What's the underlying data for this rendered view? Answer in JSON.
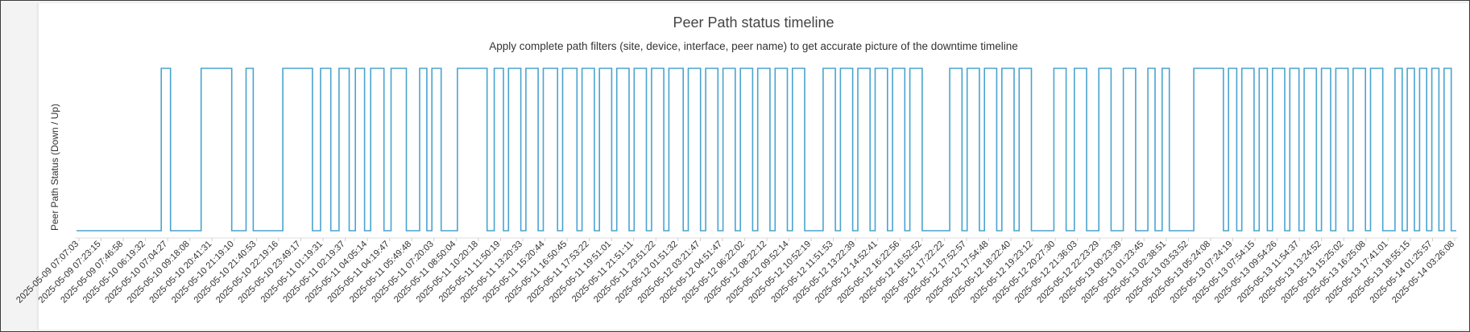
{
  "chart_data": {
    "type": "line",
    "step": true,
    "title": "Peer Path status timeline",
    "subtitle": "Apply complete path filters (site, device, interface, peer name) to get accurate picture of the downtime timeline",
    "ylabel": "Peer Path Status (Down / Up)",
    "xlabel": "",
    "y_levels": [
      "Down",
      "Up"
    ],
    "line_color": "#4aa3cf",
    "grid": false,
    "x_tick_labels": [
      "2025-05-09 07:07:03",
      "2025-05-09 07:23:15",
      "2025-05-09 07:46:58",
      "2025-05-10 06:19:32",
      "2025-05-10 07:04:27",
      "2025-05-10 09:18:08",
      "2025-05-10 20:41:31",
      "2025-05-10 21:19:10",
      "2025-05-10 21:40:53",
      "2025-05-10 22:19:16",
      "2025-05-10 23:49:17",
      "2025-05-11 01:19:31",
      "2025-05-11 02:19:37",
      "2025-05-11 04:05:14",
      "2025-05-11 04:19:47",
      "2025-05-11 05:49:48",
      "2025-05-11 07:20:03",
      "2025-05-11 08:50:04",
      "2025-05-11 10:20:18",
      "2025-05-11 11:50:19",
      "2025-05-11 13:20:33",
      "2025-05-11 15:20:44",
      "2025-05-11 16:50:45",
      "2025-05-11 17:53:22",
      "2025-05-11 19:51:01",
      "2025-05-11 21:51:11",
      "2025-05-11 23:51:22",
      "2025-05-12 01:51:32",
      "2025-05-12 03:21:47",
      "2025-05-12 04:51:47",
      "2025-05-12 06:22:02",
      "2025-05-12 08:22:12",
      "2025-05-12 09:52:14",
      "2025-05-12 10:52:19",
      "2025-05-12 11:51:53",
      "2025-05-12 13:22:39",
      "2025-05-12 14:52:41",
      "2025-05-12 16:22:56",
      "2025-05-12 16:52:52",
      "2025-05-12 17:22:22",
      "2025-05-12 17:52:57",
      "2025-05-12 17:54:48",
      "2025-05-12 18:22:40",
      "2025-05-12 19:23:12",
      "2025-05-12 20:27:30",
      "2025-05-12 21:36:03",
      "2025-05-12 22:23:29",
      "2025-05-13 00:23:39",
      "2025-05-13 01:23:45",
      "2025-05-13 02:38:51",
      "2025-05-13 03:53:52",
      "2025-05-13 05:24:08",
      "2025-05-13 07:24:19",
      "2025-05-13 07:54:15",
      "2025-05-13 09:54:26",
      "2025-05-13 11:54:37",
      "2025-05-13 13:24:52",
      "2025-05-13 15:25:02",
      "2025-05-13 16:25:08",
      "2025-05-13 17:41:01",
      "2025-05-13 18:55:15",
      "2025-05-14 01:25:57",
      "2025-05-14 03:26:08"
    ],
    "segments": [
      {
        "state": "Down",
        "ratio": 8.3
      },
      {
        "state": "Up",
        "ratio": 0.9
      },
      {
        "state": "Down",
        "ratio": 3.0
      },
      {
        "state": "Up",
        "ratio": 3.0
      },
      {
        "state": "Down",
        "ratio": 1.4
      },
      {
        "state": "Up",
        "ratio": 0.7
      },
      {
        "state": "Down",
        "ratio": 2.9
      },
      {
        "state": "Up",
        "ratio": 2.9
      },
      {
        "state": "Down",
        "ratio": 0.8
      },
      {
        "state": "Up",
        "ratio": 1.0
      },
      {
        "state": "Down",
        "ratio": 0.8
      },
      {
        "state": "Up",
        "ratio": 1.0
      },
      {
        "state": "Down",
        "ratio": 0.6
      },
      {
        "state": "Up",
        "ratio": 0.9
      },
      {
        "state": "Down",
        "ratio": 0.6
      },
      {
        "state": "Up",
        "ratio": 1.3
      },
      {
        "state": "Down",
        "ratio": 0.7
      },
      {
        "state": "Up",
        "ratio": 1.5
      },
      {
        "state": "Down",
        "ratio": 1.3
      },
      {
        "state": "Up",
        "ratio": 0.7
      },
      {
        "state": "Down",
        "ratio": 0.5
      },
      {
        "state": "Up",
        "ratio": 0.9
      },
      {
        "state": "Down",
        "ratio": 1.6
      },
      {
        "state": "Up",
        "ratio": 2.9
      },
      {
        "state": "Down",
        "ratio": 0.7
      },
      {
        "state": "Up",
        "ratio": 0.9
      },
      {
        "state": "Down",
        "ratio": 0.5
      },
      {
        "state": "Up",
        "ratio": 1.2
      },
      {
        "state": "Down",
        "ratio": 0.5
      },
      {
        "state": "Up",
        "ratio": 1.2
      },
      {
        "state": "Down",
        "ratio": 0.5
      },
      {
        "state": "Up",
        "ratio": 1.4
      },
      {
        "state": "Down",
        "ratio": 0.5
      },
      {
        "state": "Up",
        "ratio": 1.4
      },
      {
        "state": "Down",
        "ratio": 0.5
      },
      {
        "state": "Up",
        "ratio": 1.2
      },
      {
        "state": "Down",
        "ratio": 0.5
      },
      {
        "state": "Up",
        "ratio": 1.2
      },
      {
        "state": "Down",
        "ratio": 0.5
      },
      {
        "state": "Up",
        "ratio": 1.2
      },
      {
        "state": "Down",
        "ratio": 0.5
      },
      {
        "state": "Up",
        "ratio": 1.2
      },
      {
        "state": "Down",
        "ratio": 0.5
      },
      {
        "state": "Up",
        "ratio": 1.2
      },
      {
        "state": "Down",
        "ratio": 0.5
      },
      {
        "state": "Up",
        "ratio": 1.4
      },
      {
        "state": "Down",
        "ratio": 0.5
      },
      {
        "state": "Up",
        "ratio": 1.2
      },
      {
        "state": "Down",
        "ratio": 0.5
      },
      {
        "state": "Up",
        "ratio": 1.2
      },
      {
        "state": "Down",
        "ratio": 0.5
      },
      {
        "state": "Up",
        "ratio": 1.2
      },
      {
        "state": "Down",
        "ratio": 0.5
      },
      {
        "state": "Up",
        "ratio": 1.2
      },
      {
        "state": "Down",
        "ratio": 0.5
      },
      {
        "state": "Up",
        "ratio": 1.2
      },
      {
        "state": "Down",
        "ratio": 0.5
      },
      {
        "state": "Up",
        "ratio": 1.2
      },
      {
        "state": "Down",
        "ratio": 0.5
      },
      {
        "state": "Up",
        "ratio": 1.2
      },
      {
        "state": "Down",
        "ratio": 1.8
      },
      {
        "state": "Up",
        "ratio": 1.2
      },
      {
        "state": "Down",
        "ratio": 0.5
      },
      {
        "state": "Up",
        "ratio": 1.2
      },
      {
        "state": "Down",
        "ratio": 0.5
      },
      {
        "state": "Up",
        "ratio": 1.2
      },
      {
        "state": "Down",
        "ratio": 0.5
      },
      {
        "state": "Up",
        "ratio": 1.2
      },
      {
        "state": "Down",
        "ratio": 0.5
      },
      {
        "state": "Up",
        "ratio": 1.2
      },
      {
        "state": "Down",
        "ratio": 0.5
      },
      {
        "state": "Up",
        "ratio": 1.2
      },
      {
        "state": "Down",
        "ratio": 2.7
      },
      {
        "state": "Up",
        "ratio": 1.2
      },
      {
        "state": "Down",
        "ratio": 0.5
      },
      {
        "state": "Up",
        "ratio": 1.2
      },
      {
        "state": "Down",
        "ratio": 0.5
      },
      {
        "state": "Up",
        "ratio": 1.2
      },
      {
        "state": "Down",
        "ratio": 0.5
      },
      {
        "state": "Up",
        "ratio": 1.2
      },
      {
        "state": "Down",
        "ratio": 0.5
      },
      {
        "state": "Up",
        "ratio": 1.2
      },
      {
        "state": "Down",
        "ratio": 2.2
      },
      {
        "state": "Up",
        "ratio": 1.2
      },
      {
        "state": "Down",
        "ratio": 0.8
      },
      {
        "state": "Up",
        "ratio": 1.2
      },
      {
        "state": "Down",
        "ratio": 1.2
      },
      {
        "state": "Up",
        "ratio": 1.2
      },
      {
        "state": "Down",
        "ratio": 1.2
      },
      {
        "state": "Up",
        "ratio": 1.2
      },
      {
        "state": "Down",
        "ratio": 1.2
      },
      {
        "state": "Up",
        "ratio": 0.7
      },
      {
        "state": "Down",
        "ratio": 0.7
      },
      {
        "state": "Up",
        "ratio": 0.7
      },
      {
        "state": "Down",
        "ratio": 2.4
      },
      {
        "state": "Up",
        "ratio": 2.9
      },
      {
        "state": "Down",
        "ratio": 0.5
      },
      {
        "state": "Up",
        "ratio": 0.8
      },
      {
        "state": "Down",
        "ratio": 0.5
      },
      {
        "state": "Up",
        "ratio": 1.2
      },
      {
        "state": "Down",
        "ratio": 0.5
      },
      {
        "state": "Up",
        "ratio": 0.8
      },
      {
        "state": "Down",
        "ratio": 0.5
      },
      {
        "state": "Up",
        "ratio": 1.2
      },
      {
        "state": "Down",
        "ratio": 0.5
      },
      {
        "state": "Up",
        "ratio": 0.9
      },
      {
        "state": "Down",
        "ratio": 0.5
      },
      {
        "state": "Up",
        "ratio": 1.2
      },
      {
        "state": "Down",
        "ratio": 0.5
      },
      {
        "state": "Up",
        "ratio": 0.9
      },
      {
        "state": "Down",
        "ratio": 0.5
      },
      {
        "state": "Up",
        "ratio": 1.2
      },
      {
        "state": "Down",
        "ratio": 0.5
      },
      {
        "state": "Up",
        "ratio": 1.2
      },
      {
        "state": "Down",
        "ratio": 0.5
      },
      {
        "state": "Up",
        "ratio": 1.2
      },
      {
        "state": "Down",
        "ratio": 1.2
      },
      {
        "state": "Up",
        "ratio": 0.7
      },
      {
        "state": "Down",
        "ratio": 0.5
      },
      {
        "state": "Up",
        "ratio": 0.7
      },
      {
        "state": "Down",
        "ratio": 0.5
      },
      {
        "state": "Up",
        "ratio": 0.7
      },
      {
        "state": "Down",
        "ratio": 0.5
      },
      {
        "state": "Up",
        "ratio": 0.7
      },
      {
        "state": "Down",
        "ratio": 0.5
      },
      {
        "state": "Up",
        "ratio": 0.7
      },
      {
        "state": "Down",
        "ratio": 0.5
      }
    ]
  }
}
